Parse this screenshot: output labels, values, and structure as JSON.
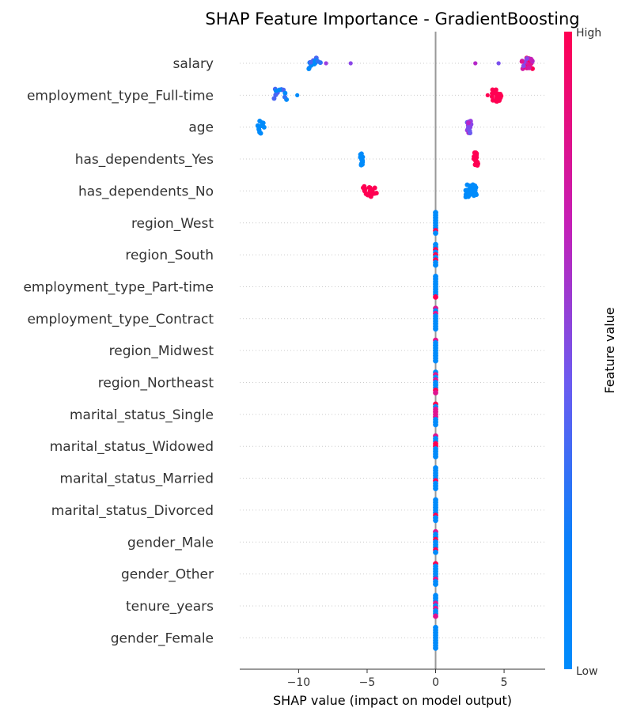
{
  "chart_data": {
    "type": "scatter",
    "title": "SHAP Feature Importance - GradientBoosting",
    "xlabel": "SHAP value (impact on model output)",
    "xlim": [
      -14.3,
      8.0
    ],
    "xticks": [
      -10,
      -5,
      0,
      5
    ],
    "xtick_labels": [
      "−10",
      "−5",
      "0",
      "5"
    ],
    "zero_line": 0,
    "colorbar": {
      "label": "Feature value",
      "high_label": "High",
      "low_label": "Low",
      "colors": [
        "#008bfb",
        "#ff0052"
      ]
    },
    "features": [
      {
        "name": "salary",
        "groups": [
          {
            "from": -9.3,
            "to": -8.4,
            "color": "mixed-blue",
            "n": 14
          },
          {
            "at": -8.0,
            "color": "#9b3de0",
            "n": 1
          },
          {
            "at": -6.2,
            "color": "#8a45e8",
            "n": 1
          },
          {
            "at": 2.9,
            "color": "#b525c9",
            "n": 1
          },
          {
            "at": 4.6,
            "color": "#7a4fee",
            "n": 1
          },
          {
            "from": 6.3,
            "to": 7.1,
            "color": "mixed-magenta",
            "n": 24
          }
        ]
      },
      {
        "name": "employment_type_Full-time",
        "groups": [
          {
            "from": -11.8,
            "to": -10.7,
            "color": "mixed-blue",
            "n": 12
          },
          {
            "at": -10.1,
            "color": "#008bfb",
            "n": 1
          },
          {
            "from": 4.1,
            "to": 4.8,
            "color": "#ff0052",
            "n": 22
          },
          {
            "at": 3.8,
            "color": "#ff0052",
            "n": 1
          }
        ]
      },
      {
        "name": "age",
        "groups": [
          {
            "from": -13.0,
            "to": -12.5,
            "color": "#008bfb",
            "n": 12
          },
          {
            "from": 2.3,
            "to": 2.6,
            "color": "mixed-purple",
            "n": 20
          }
        ]
      },
      {
        "name": "has_dependents_Yes",
        "groups": [
          {
            "from": -5.5,
            "to": -5.3,
            "color": "#008bfb",
            "n": 16
          },
          {
            "from": 2.8,
            "to": 3.1,
            "color": "#ff0052",
            "n": 22
          }
        ]
      },
      {
        "name": "has_dependents_No",
        "groups": [
          {
            "from": -5.3,
            "to": -4.2,
            "color": "#ff0052",
            "n": 24
          },
          {
            "from": 2.2,
            "to": 3.0,
            "color": "#008bfb",
            "n": 30
          }
        ]
      },
      {
        "name": "region_West",
        "groups": [
          {
            "at": 0,
            "color": "zero-stack",
            "n": 9
          }
        ]
      },
      {
        "name": "region_South",
        "groups": [
          {
            "at": 0,
            "color": "zero-stack",
            "n": 9
          }
        ]
      },
      {
        "name": "employment_type_Part-time",
        "groups": [
          {
            "at": 0,
            "color": "zero-stack",
            "n": 9
          }
        ]
      },
      {
        "name": "employment_type_Contract",
        "groups": [
          {
            "at": 0,
            "color": "zero-stack",
            "n": 9
          }
        ]
      },
      {
        "name": "region_Midwest",
        "groups": [
          {
            "at": 0,
            "color": "zero-stack",
            "n": 9
          }
        ]
      },
      {
        "name": "region_Northeast",
        "groups": [
          {
            "at": 0,
            "color": "zero-stack",
            "n": 9
          }
        ]
      },
      {
        "name": "marital_status_Single",
        "groups": [
          {
            "at": 0,
            "color": "zero-stack",
            "n": 9
          }
        ]
      },
      {
        "name": "marital_status_Widowed",
        "groups": [
          {
            "at": 0,
            "color": "zero-stack",
            "n": 9
          }
        ]
      },
      {
        "name": "marital_status_Married",
        "groups": [
          {
            "at": 0,
            "color": "zero-stack",
            "n": 9
          }
        ]
      },
      {
        "name": "marital_status_Divorced",
        "groups": [
          {
            "at": 0,
            "color": "zero-stack",
            "n": 9
          }
        ]
      },
      {
        "name": "gender_Male",
        "groups": [
          {
            "at": 0,
            "color": "zero-stack",
            "n": 9
          }
        ]
      },
      {
        "name": "gender_Other",
        "groups": [
          {
            "at": 0,
            "color": "zero-stack",
            "n": 9
          }
        ]
      },
      {
        "name": "tenure_years",
        "groups": [
          {
            "at": 0,
            "color": "zero-stack",
            "n": 9
          }
        ]
      },
      {
        "name": "gender_Female",
        "groups": [
          {
            "at": 0,
            "color": "zero-stack",
            "n": 9
          }
        ]
      }
    ]
  }
}
